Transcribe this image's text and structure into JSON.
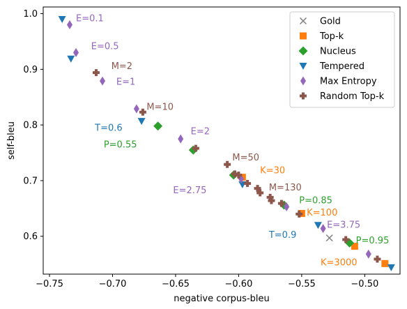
{
  "chart_data": {
    "type": "scatter",
    "xlabel": "negative corpus-bleu",
    "ylabel": "self-bleu",
    "xlim": [
      -0.755,
      -0.472
    ],
    "ylim": [
      0.532,
      1.012
    ],
    "x_ticks": [
      -0.75,
      -0.7,
      -0.65,
      -0.6,
      -0.55,
      -0.5
    ],
    "x_tick_labels": [
      "−0.75",
      "−0.70",
      "−0.65",
      "−0.60",
      "−0.55",
      "−0.50"
    ],
    "y_ticks": [
      0.6,
      0.7,
      0.8,
      0.9,
      1.0
    ],
    "y_tick_labels": [
      "0.6",
      "0.7",
      "0.8",
      "0.9",
      "1.0"
    ],
    "grid": false,
    "legend_position": "top-right",
    "series": [
      {
        "name": "Gold",
        "marker": "x",
        "color": "#7f7f7f",
        "points": [
          {
            "x": -0.528,
            "y": 0.597
          }
        ]
      },
      {
        "name": "Top-k",
        "marker": "square",
        "color": "#ff7f0e",
        "points": [
          {
            "x": -0.597,
            "y": 0.706
          },
          {
            "x": -0.55,
            "y": 0.641
          },
          {
            "x": -0.508,
            "y": 0.582
          },
          {
            "x": -0.484,
            "y": 0.551
          }
        ]
      },
      {
        "name": "Nucleus",
        "marker": "diamond",
        "color": "#2ca02c",
        "points": [
          {
            "x": -0.664,
            "y": 0.798
          },
          {
            "x": -0.636,
            "y": 0.755
          },
          {
            "x": -0.604,
            "y": 0.71
          },
          {
            "x": -0.564,
            "y": 0.656
          },
          {
            "x": -0.512,
            "y": 0.588
          }
        ]
      },
      {
        "name": "Tempered",
        "marker": "triangle-down",
        "color": "#1f77b4",
        "points": [
          {
            "x": -0.74,
            "y": 0.99
          },
          {
            "x": -0.733,
            "y": 0.919
          },
          {
            "x": -0.677,
            "y": 0.807
          },
          {
            "x": -0.597,
            "y": 0.693
          },
          {
            "x": -0.537,
            "y": 0.62
          },
          {
            "x": -0.479,
            "y": 0.544
          }
        ]
      },
      {
        "name": "Max Entropy",
        "marker": "thin-diamond",
        "color": "#9467bd",
        "points": [
          {
            "x": -0.734,
            "y": 0.98
          },
          {
            "x": -0.729,
            "y": 0.93
          },
          {
            "x": -0.708,
            "y": 0.879
          },
          {
            "x": -0.681,
            "y": 0.829
          },
          {
            "x": -0.646,
            "y": 0.775
          },
          {
            "x": -0.598,
            "y": 0.703
          },
          {
            "x": -0.562,
            "y": 0.653
          },
          {
            "x": -0.533,
            "y": 0.614
          },
          {
            "x": -0.497,
            "y": 0.568
          }
        ]
      },
      {
        "name": "Random Top-k",
        "marker": "plus-filled",
        "color": "#8c564b",
        "points": [
          {
            "x": -0.713,
            "y": 0.894
          },
          {
            "x": -0.676,
            "y": 0.823
          },
          {
            "x": -0.634,
            "y": 0.758
          },
          {
            "x": -0.609,
            "y": 0.729
          },
          {
            "x": -0.603,
            "y": 0.712
          },
          {
            "x": -0.6,
            "y": 0.71
          },
          {
            "x": -0.593,
            "y": 0.695
          },
          {
            "x": -0.585,
            "y": 0.686
          },
          {
            "x": -0.583,
            "y": 0.678
          },
          {
            "x": -0.575,
            "y": 0.67
          },
          {
            "x": -0.574,
            "y": 0.664
          },
          {
            "x": -0.566,
            "y": 0.659
          },
          {
            "x": -0.552,
            "y": 0.64
          },
          {
            "x": -0.515,
            "y": 0.594
          },
          {
            "x": -0.49,
            "y": 0.559
          }
        ]
      }
    ],
    "annotations": [
      {
        "text": "E=0.1",
        "x": -0.729,
        "y": 0.992,
        "color": "#9467bd"
      },
      {
        "text": "E=0.5",
        "x": -0.717,
        "y": 0.942,
        "color": "#9467bd"
      },
      {
        "text": "M=2",
        "x": -0.701,
        "y": 0.906,
        "color": "#8c564b"
      },
      {
        "text": "E=1",
        "x": -0.697,
        "y": 0.878,
        "color": "#9467bd"
      },
      {
        "text": "M=10",
        "x": -0.673,
        "y": 0.833,
        "color": "#8c564b"
      },
      {
        "text": "T=0.6",
        "x": -0.714,
        "y": 0.795,
        "color": "#1f77b4"
      },
      {
        "text": "E=2",
        "x": -0.638,
        "y": 0.789,
        "color": "#9467bd"
      },
      {
        "text": "P=0.55",
        "x": -0.707,
        "y": 0.765,
        "color": "#2ca02c"
      },
      {
        "text": "M=50",
        "x": -0.605,
        "y": 0.742,
        "color": "#8c564b"
      },
      {
        "text": "K=30",
        "x": -0.583,
        "y": 0.719,
        "color": "#ff7f0e"
      },
      {
        "text": "E=2.75",
        "x": -0.652,
        "y": 0.683,
        "color": "#9467bd"
      },
      {
        "text": "M=130",
        "x": -0.576,
        "y": 0.688,
        "color": "#8c564b"
      },
      {
        "text": "P=0.85",
        "x": -0.552,
        "y": 0.665,
        "color": "#2ca02c"
      },
      {
        "text": "K=100",
        "x": -0.546,
        "y": 0.643,
        "color": "#ff7f0e"
      },
      {
        "text": "E=3.75",
        "x": -0.53,
        "y": 0.621,
        "color": "#9467bd"
      },
      {
        "text": "T=0.9",
        "x": -0.576,
        "y": 0.603,
        "color": "#1f77b4"
      },
      {
        "text": "P=0.95",
        "x": -0.507,
        "y": 0.593,
        "color": "#2ca02c"
      },
      {
        "text": "K=3000",
        "x": -0.535,
        "y": 0.553,
        "color": "#ff7f0e"
      }
    ]
  }
}
